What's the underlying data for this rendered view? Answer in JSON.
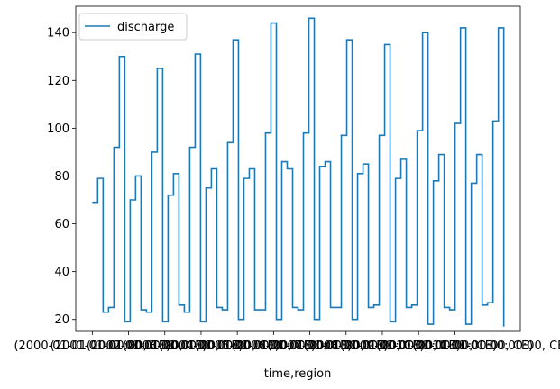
{
  "chart_data": {
    "type": "line",
    "drawstyle": "steps-post",
    "xlabel": "time,region",
    "ylabel": "",
    "ylim": [
      15,
      151
    ],
    "yticks": [
      20,
      40,
      60,
      80,
      100,
      120,
      140
    ],
    "grid": false,
    "legend_placement": "upper-left",
    "series": [
      {
        "name": "discharge",
        "color": "#1f77b4",
        "values": [
          69,
          79,
          23,
          25,
          92,
          130,
          19,
          70,
          80,
          24,
          23,
          90,
          125,
          19,
          72,
          81,
          26,
          23,
          92,
          131,
          19,
          75,
          83,
          25,
          24,
          94,
          137,
          20,
          79,
          83,
          24,
          24,
          98,
          144,
          20,
          86,
          83,
          25,
          24,
          98,
          146,
          20,
          84,
          86,
          25,
          25,
          97,
          137,
          20,
          81,
          85,
          25,
          26,
          97,
          135,
          19,
          79,
          87,
          25,
          26,
          99,
          140,
          18,
          78,
          89,
          25,
          24,
          102,
          142,
          18,
          77,
          89,
          26,
          27,
          103,
          142,
          17
        ]
      }
    ],
    "xtick_labels": [
      "(2000-01-01 00:00:00, CE)",
      "(2001-01-01 00:00:00, CE)",
      "(2002-01-01 00:00:00, CE)",
      "(2003-01-01 00:00:00, CE)",
      "(2004-01-01 00:00:00, CE)",
      "(2005-01-01 00:00:00, CE)",
      "(2006-01-01 00:00:00, CE)",
      "(2007-01-01 00:00:00, CE)",
      "(2008-01-01 00:00:00, CE)",
      "(2009-01-01 00:00:00, CE)",
      "(2010-01-01 00:00:00, CE)",
      "(2011-01-01 00:00:00, CE)"
    ]
  }
}
